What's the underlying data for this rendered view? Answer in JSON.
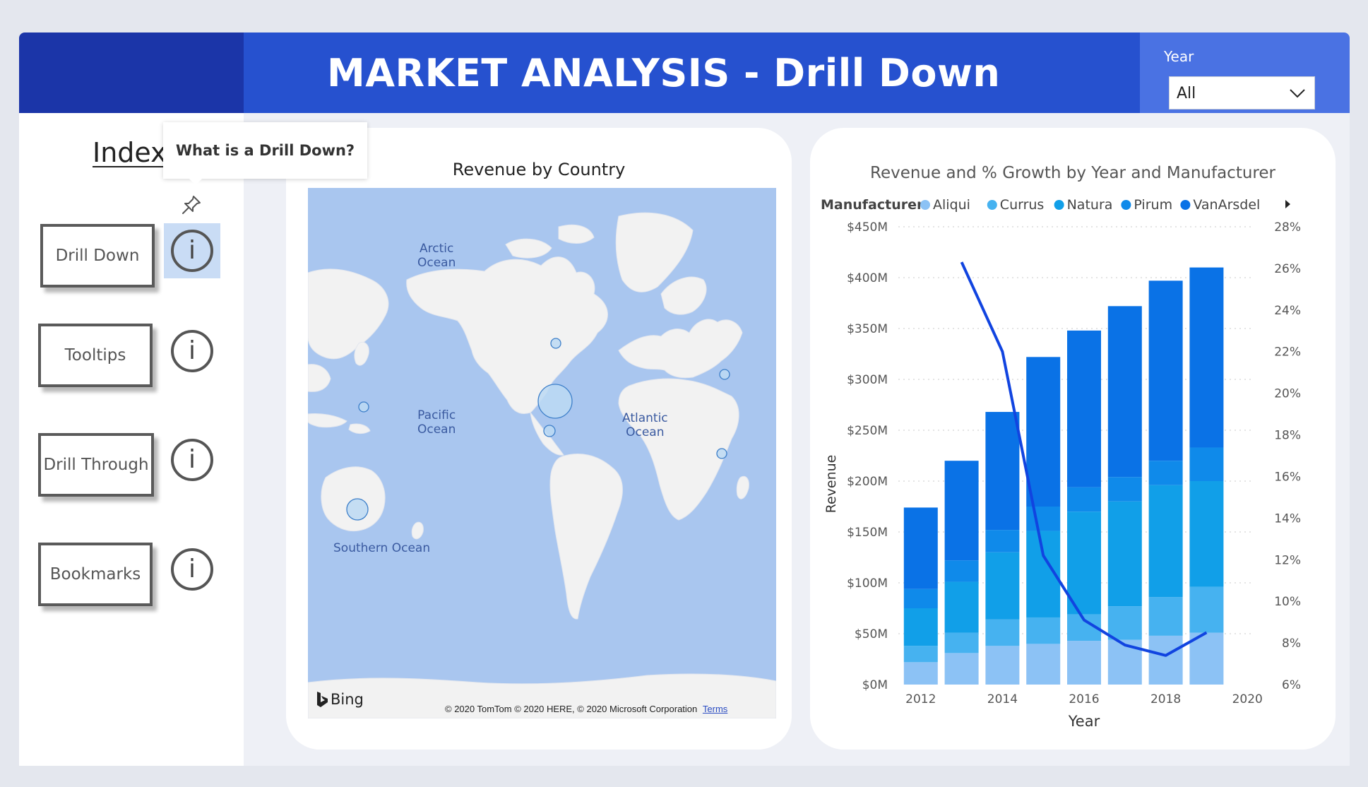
{
  "header": {
    "title": "MARKET ANALYSIS - Drill Down",
    "year_filter": {
      "label": "Year",
      "value": "All"
    },
    "colors": {
      "left": "#1b35a8",
      "main": "#2651cf",
      "right": "#4a72e3"
    }
  },
  "sidebar": {
    "title": "Index",
    "items": [
      {
        "label": "Drill Down",
        "icon": "info-icon"
      },
      {
        "label": "Tooltips",
        "icon": "info-icon"
      },
      {
        "label": "Drill Through",
        "icon": "info-icon"
      },
      {
        "label": "Bookmarks",
        "icon": "info-icon"
      }
    ],
    "info_glyph": "i",
    "tooltip": "What is a Drill Down?",
    "pin_icon": "pin-icon"
  },
  "map": {
    "title": "Revenue by Country",
    "oceans": [
      {
        "name": "Arctic\nOcean"
      },
      {
        "name": "Pacific\nOcean"
      },
      {
        "name": "Atlantic\nOcean"
      },
      {
        "name": "Southern Ocean"
      }
    ],
    "bing": "Bing",
    "copyright": "© 2020 TomTom © 2020 HERE, © 2020 Microsoft Corporation",
    "terms": "Terms",
    "colors": {
      "water": "#a9c6ef",
      "land": "#f2f2f2",
      "bubble": "#bcd9f3",
      "bubble_stroke": "#3d7fc9"
    }
  },
  "chart_data": {
    "type": "bar",
    "title": "Revenue and % Growth by Year and Manufacturer",
    "legend_title": "Manufacturer",
    "legend_placement": "top",
    "xlabel": "Year",
    "ylabel": "Revenue",
    "x_ticks": [
      "2012",
      "2014",
      "2016",
      "2018",
      "2020"
    ],
    "y_ticks": [
      "$0M",
      "$50M",
      "$100M",
      "$150M",
      "$200M",
      "$250M",
      "$300M",
      "$350M",
      "$400M",
      "$450M"
    ],
    "y2_ticks": [
      "6%",
      "8%",
      "10%",
      "12%",
      "14%",
      "16%",
      "18%",
      "20%",
      "22%",
      "24%",
      "26%",
      "28%"
    ],
    "ylim": [
      0,
      450
    ],
    "y2lim": [
      6,
      28
    ],
    "categories": [
      2012,
      2013,
      2014,
      2015,
      2016,
      2017,
      2018,
      2019
    ],
    "series": [
      {
        "name": "Aliqui",
        "color": "#8cc2f5",
        "values": [
          22,
          31,
          38,
          40,
          43,
          44,
          48,
          51
        ]
      },
      {
        "name": "Currus",
        "color": "#46b2f0",
        "values": [
          16,
          20,
          26,
          26,
          26,
          33,
          38,
          45
        ]
      },
      {
        "name": "Natura",
        "color": "#119fe8",
        "values": [
          37,
          50,
          66,
          85,
          101,
          103,
          110,
          104
        ]
      },
      {
        "name": "Pirum",
        "color": "#0f8aea",
        "values": [
          19,
          21,
          22,
          24,
          24,
          24,
          24,
          33
        ]
      },
      {
        "name": "VanArsdel",
        "color": "#0a72e6",
        "values": [
          80,
          98,
          116,
          147,
          154,
          168,
          177,
          177
        ]
      }
    ],
    "growth_line": {
      "color": "#1144e0",
      "x": [
        2013,
        2014,
        2015,
        2016,
        2017,
        2018,
        2019
      ],
      "values": [
        26.3,
        22.0,
        12.2,
        9.1,
        7.9,
        7.4,
        8.5
      ]
    }
  }
}
